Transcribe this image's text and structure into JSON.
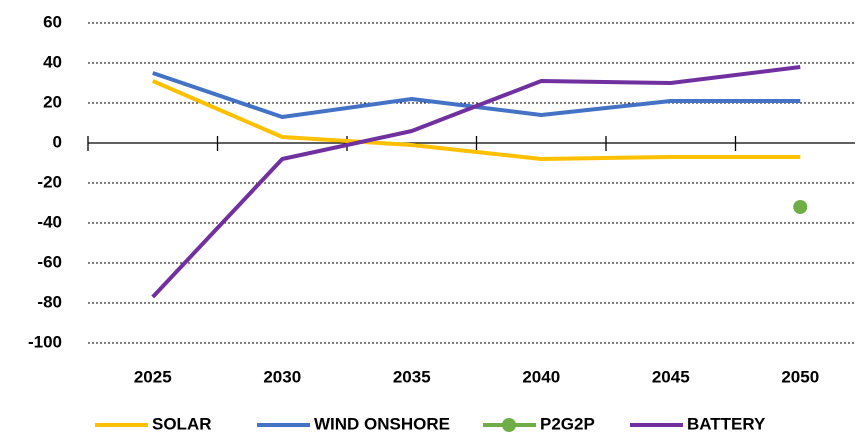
{
  "chart_data": {
    "type": "line",
    "categories": [
      "2025",
      "2030",
      "2035",
      "2040",
      "2045",
      "2050"
    ],
    "series": [
      {
        "name": "SOLAR",
        "color": "#ffc000",
        "values": [
          31,
          3,
          -1,
          -8,
          -7,
          -7
        ]
      },
      {
        "name": "WIND ONSHORE",
        "color": "#4472c4",
        "values": [
          35,
          13,
          22,
          14,
          21,
          21
        ]
      },
      {
        "name": "P2G2P",
        "color": "#70ad47",
        "values": [
          null,
          null,
          null,
          null,
          null,
          -32
        ],
        "marker": true
      },
      {
        "name": "BATTERY",
        "color": "#7030a0",
        "values": [
          -77,
          -8,
          6,
          31,
          30,
          38
        ]
      }
    ],
    "ylim": [
      -100,
      60
    ],
    "yticks": [
      -100,
      -80,
      -60,
      -40,
      -20,
      0,
      20,
      40,
      60
    ],
    "grid": true,
    "legend": "bottom"
  }
}
